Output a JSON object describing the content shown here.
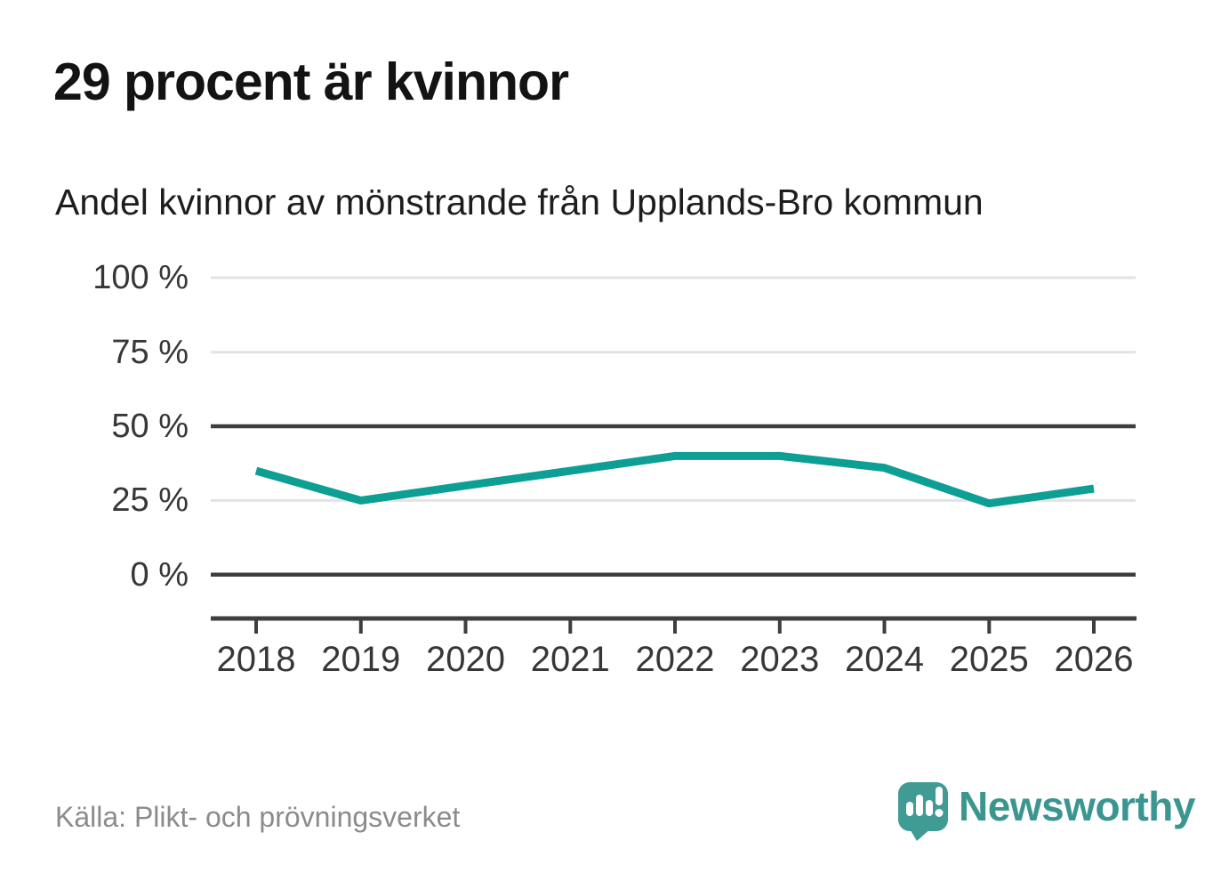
{
  "header": {
    "title": "29 procent är kvinnor",
    "subtitle": "Andel kvinnor av mönstrande från Upplands-Bro kommun"
  },
  "chart_data": {
    "type": "line",
    "title": "29 procent är kvinnor",
    "subtitle": "Andel kvinnor av mönstrande från Upplands-Bro kommun",
    "categories": [
      "2018",
      "2019",
      "2020",
      "2021",
      "2022",
      "2023",
      "2024",
      "2025",
      "2026"
    ],
    "series": [
      {
        "name": "Andel kvinnor av mönstrande",
        "values": [
          35,
          25,
          30,
          35,
          40,
          40,
          36,
          24,
          29
        ]
      }
    ],
    "unit": "%",
    "ylim": [
      0,
      100
    ],
    "ytick_labels": [
      "100 %",
      "75 %",
      "50 %",
      "25 %",
      "0 %"
    ],
    "ytick_values": [
      100,
      75,
      50,
      25,
      0
    ],
    "grid": "horizontal",
    "legend": "none",
    "line_color": "#0d9e94",
    "emphasized_gridlines": [
      50,
      0
    ],
    "light_gridline_color": "#e3e3e3",
    "dark_gridline_color": "#3e3e3e"
  },
  "footer": {
    "source": "Källa: Plikt- och prövningsverket",
    "brand": "Newsworthy"
  }
}
